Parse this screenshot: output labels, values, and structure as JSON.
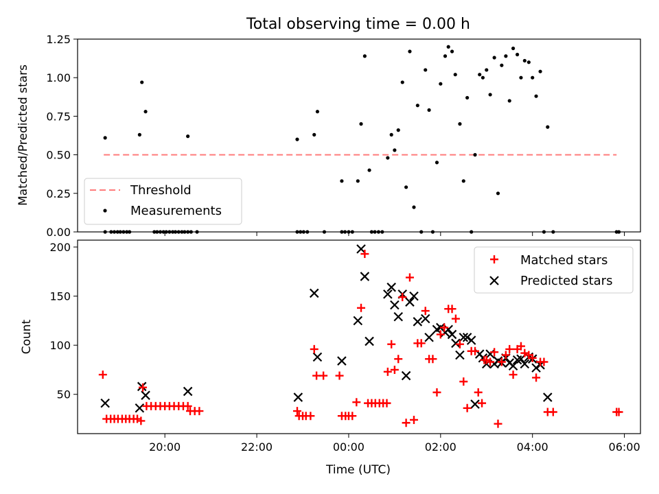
{
  "chart_data": [
    {
      "type": "scatter",
      "title": "Total observing time = 0.00 h",
      "xlabel": "",
      "ylabel": "Matched/Predicted stars",
      "ylim": [
        0,
        1.25
      ],
      "yticks": [
        "0.00",
        "0.25",
        "0.50",
        "0.75",
        "1.00",
        "1.25"
      ],
      "x_unit": "hours since 00:00 UTC",
      "xlim": [
        -5.9,
        6.35
      ],
      "legend_position": "bottom-left",
      "threshold": {
        "name": "Threshold",
        "value": 0.5,
        "x_range": [
          -5.33,
          5.83
        ],
        "color": "#ff7b7b"
      },
      "series": [
        {
          "name": "Measurements",
          "color": "#000000",
          "points": [
            [
              -5.3,
              0.61
            ],
            [
              -5.3,
              0
            ],
            [
              -5.17,
              0
            ],
            [
              -5.1,
              0
            ],
            [
              -5.03,
              0
            ],
            [
              -4.97,
              0
            ],
            [
              -4.9,
              0
            ],
            [
              -4.83,
              0
            ],
            [
              -4.77,
              0
            ],
            [
              -4.55,
              0.63
            ],
            [
              -4.5,
              0.97
            ],
            [
              -4.42,
              0.78
            ],
            [
              -4.23,
              0
            ],
            [
              -4.17,
              0
            ],
            [
              -4.1,
              0
            ],
            [
              -4.03,
              0
            ],
            [
              -3.97,
              0
            ],
            [
              -3.9,
              0
            ],
            [
              -3.83,
              0
            ],
            [
              -3.77,
              0
            ],
            [
              -3.7,
              0
            ],
            [
              -3.63,
              0
            ],
            [
              -3.57,
              0
            ],
            [
              -3.5,
              0
            ],
            [
              -3.43,
              0
            ],
            [
              -3.5,
              0.62
            ],
            [
              -3.3,
              0
            ],
            [
              -1.12,
              0.6
            ],
            [
              -1.12,
              0
            ],
            [
              -1.05,
              0
            ],
            [
              -0.98,
              0
            ],
            [
              -0.9,
              0
            ],
            [
              -0.75,
              0.63
            ],
            [
              -0.68,
              0.78
            ],
            [
              -0.53,
              0
            ],
            [
              -0.15,
              0.33
            ],
            [
              -0.15,
              0
            ],
            [
              -0.08,
              0
            ],
            [
              0.0,
              0
            ],
            [
              0.08,
              0
            ],
            [
              0.2,
              0.33
            ],
            [
              0.27,
              0.7
            ],
            [
              0.35,
              1.14
            ],
            [
              0.45,
              0.4
            ],
            [
              0.5,
              0
            ],
            [
              0.57,
              0
            ],
            [
              0.65,
              0
            ],
            [
              0.73,
              0
            ],
            [
              0.85,
              0.48
            ],
            [
              0.93,
              0.63
            ],
            [
              1.0,
              0.53
            ],
            [
              1.08,
              0.66
            ],
            [
              1.17,
              0.97
            ],
            [
              1.25,
              0.29
            ],
            [
              1.33,
              1.17
            ],
            [
              1.42,
              0.16
            ],
            [
              1.5,
              0.82
            ],
            [
              1.58,
              0
            ],
            [
              1.67,
              1.05
            ],
            [
              1.75,
              0.79
            ],
            [
              1.83,
              0
            ],
            [
              1.92,
              0.45
            ],
            [
              2.0,
              0.96
            ],
            [
              2.1,
              1.14
            ],
            [
              2.17,
              1.2
            ],
            [
              2.25,
              1.17
            ],
            [
              2.32,
              1.02
            ],
            [
              2.42,
              0.7
            ],
            [
              2.5,
              0.33
            ],
            [
              2.58,
              0.87
            ],
            [
              2.67,
              0
            ],
            [
              2.75,
              0.5
            ],
            [
              2.85,
              1.02
            ],
            [
              2.92,
              1.0
            ],
            [
              3.0,
              1.05
            ],
            [
              3.08,
              0.89
            ],
            [
              3.17,
              1.13
            ],
            [
              3.25,
              0.25
            ],
            [
              3.33,
              1.08
            ],
            [
              3.42,
              1.14
            ],
            [
              3.5,
              0.85
            ],
            [
              3.58,
              1.19
            ],
            [
              3.67,
              1.15
            ],
            [
              3.75,
              1.0
            ],
            [
              3.83,
              1.11
            ],
            [
              3.92,
              1.1
            ],
            [
              4.0,
              1.0
            ],
            [
              4.08,
              0.88
            ],
            [
              4.17,
              1.04
            ],
            [
              4.25,
              0
            ],
            [
              4.33,
              0.68
            ],
            [
              4.45,
              0
            ],
            [
              5.83,
              0
            ],
            [
              5.88,
              0
            ]
          ]
        }
      ]
    },
    {
      "type": "scatter",
      "title": "",
      "xlabel": "Time (UTC)",
      "ylabel": "Count",
      "ylim": [
        10,
        207
      ],
      "yticks": [
        50,
        100,
        150,
        200
      ],
      "x_unit": "hours since 00:00 UTC",
      "xlim": [
        -5.9,
        6.35
      ],
      "xticks": [
        {
          "value": -4,
          "label": "20:00"
        },
        {
          "value": -2,
          "label": "22:00"
        },
        {
          "value": 0,
          "label": "00:00"
        },
        {
          "value": 2,
          "label": "02:00"
        },
        {
          "value": 4,
          "label": "04:00"
        },
        {
          "value": 6,
          "label": "06:00"
        }
      ],
      "legend_position": "top-right",
      "series": [
        {
          "name": "Matched stars",
          "color": "#ff0000",
          "marker": "+",
          "points": [
            [
              -5.35,
              70
            ],
            [
              -5.27,
              25
            ],
            [
              -5.18,
              25
            ],
            [
              -5.1,
              25
            ],
            [
              -5.02,
              25
            ],
            [
              -4.93,
              25
            ],
            [
              -4.85,
              25
            ],
            [
              -4.77,
              25
            ],
            [
              -4.68,
              25
            ],
            [
              -4.6,
              25
            ],
            [
              -4.52,
              23
            ],
            [
              -4.48,
              57
            ],
            [
              -4.4,
              38
            ],
            [
              -4.3,
              38
            ],
            [
              -4.2,
              38
            ],
            [
              -4.1,
              38
            ],
            [
              -4.0,
              38
            ],
            [
              -3.9,
              38
            ],
            [
              -3.8,
              38
            ],
            [
              -3.7,
              38
            ],
            [
              -3.6,
              38
            ],
            [
              -3.5,
              38
            ],
            [
              -3.45,
              33
            ],
            [
              -3.35,
              33
            ],
            [
              -3.25,
              33
            ],
            [
              -1.12,
              33
            ],
            [
              -1.08,
              28
            ],
            [
              -1.0,
              28
            ],
            [
              -0.93,
              28
            ],
            [
              -0.83,
              28
            ],
            [
              -0.75,
              96
            ],
            [
              -0.7,
              69
            ],
            [
              -0.55,
              69
            ],
            [
              -0.2,
              69
            ],
            [
              -0.15,
              28
            ],
            [
              -0.07,
              28
            ],
            [
              0.0,
              28
            ],
            [
              0.08,
              28
            ],
            [
              0.17,
              42
            ],
            [
              0.27,
              138
            ],
            [
              0.35,
              193
            ],
            [
              0.42,
              41
            ],
            [
              0.5,
              41
            ],
            [
              0.58,
              41
            ],
            [
              0.67,
              41
            ],
            [
              0.75,
              41
            ],
            [
              0.83,
              41
            ],
            [
              0.85,
              73
            ],
            [
              0.93,
              101
            ],
            [
              1.0,
              75
            ],
            [
              1.08,
              86
            ],
            [
              1.17,
              149
            ],
            [
              1.25,
              21
            ],
            [
              1.33,
              169
            ],
            [
              1.42,
              24
            ],
            [
              1.5,
              102
            ],
            [
              1.58,
              102
            ],
            [
              1.67,
              135
            ],
            [
              1.75,
              86
            ],
            [
              1.83,
              86
            ],
            [
              1.92,
              52
            ],
            [
              2.0,
              111
            ],
            [
              2.08,
              118
            ],
            [
              2.17,
              137
            ],
            [
              2.25,
              137
            ],
            [
              2.33,
              127
            ],
            [
              2.42,
              101
            ],
            [
              2.5,
              63
            ],
            [
              2.58,
              36
            ],
            [
              2.67,
              94
            ],
            [
              2.75,
              94
            ],
            [
              2.82,
              52
            ],
            [
              2.9,
              41
            ],
            [
              2.95,
              85
            ],
            [
              3.0,
              85
            ],
            [
              3.08,
              83
            ],
            [
              3.17,
              93
            ],
            [
              3.25,
              20
            ],
            [
              3.33,
              83
            ],
            [
              3.42,
              90
            ],
            [
              3.5,
              96
            ],
            [
              3.58,
              70
            ],
            [
              3.67,
              96
            ],
            [
              3.75,
              99
            ],
            [
              3.83,
              92
            ],
            [
              3.92,
              90
            ],
            [
              4.0,
              87
            ],
            [
              4.08,
              67
            ],
            [
              4.17,
              83
            ],
            [
              4.25,
              83
            ],
            [
              4.33,
              32
            ],
            [
              4.45,
              32
            ],
            [
              5.83,
              32
            ],
            [
              5.88,
              32
            ]
          ]
        },
        {
          "name": "Predicted stars",
          "color": "#000000",
          "marker": "x",
          "points": [
            [
              -5.3,
              41
            ],
            [
              -4.55,
              36
            ],
            [
              -4.5,
              58
            ],
            [
              -4.42,
              49
            ],
            [
              -3.5,
              53
            ],
            [
              -1.1,
              47
            ],
            [
              -0.75,
              153
            ],
            [
              -0.68,
              88
            ],
            [
              -0.15,
              84
            ],
            [
              0.2,
              125
            ],
            [
              0.27,
              198
            ],
            [
              0.35,
              170
            ],
            [
              0.45,
              104
            ],
            [
              0.85,
              152
            ],
            [
              0.93,
              159
            ],
            [
              1.0,
              141
            ],
            [
              1.08,
              129
            ],
            [
              1.17,
              152
            ],
            [
              1.25,
              69
            ],
            [
              1.33,
              144
            ],
            [
              1.42,
              150
            ],
            [
              1.5,
              124
            ],
            [
              1.67,
              127
            ],
            [
              1.75,
              108
            ],
            [
              1.92,
              116
            ],
            [
              2.0,
              118
            ],
            [
              2.1,
              113
            ],
            [
              2.17,
              116
            ],
            [
              2.25,
              111
            ],
            [
              2.33,
              102
            ],
            [
              2.42,
              90
            ],
            [
              2.5,
              108
            ],
            [
              2.58,
              108
            ],
            [
              2.67,
              105
            ],
            [
              2.75,
              40
            ],
            [
              2.85,
              91
            ],
            [
              2.92,
              87
            ],
            [
              3.0,
              81
            ],
            [
              3.08,
              91
            ],
            [
              3.17,
              81
            ],
            [
              3.25,
              84
            ],
            [
              3.33,
              82
            ],
            [
              3.42,
              87
            ],
            [
              3.5,
              82
            ],
            [
              3.58,
              79
            ],
            [
              3.67,
              85
            ],
            [
              3.75,
              86
            ],
            [
              3.83,
              81
            ],
            [
              3.92,
              88
            ],
            [
              4.0,
              86
            ],
            [
              4.08,
              77
            ],
            [
              4.17,
              80
            ],
            [
              4.33,
              47
            ]
          ]
        }
      ]
    }
  ]
}
